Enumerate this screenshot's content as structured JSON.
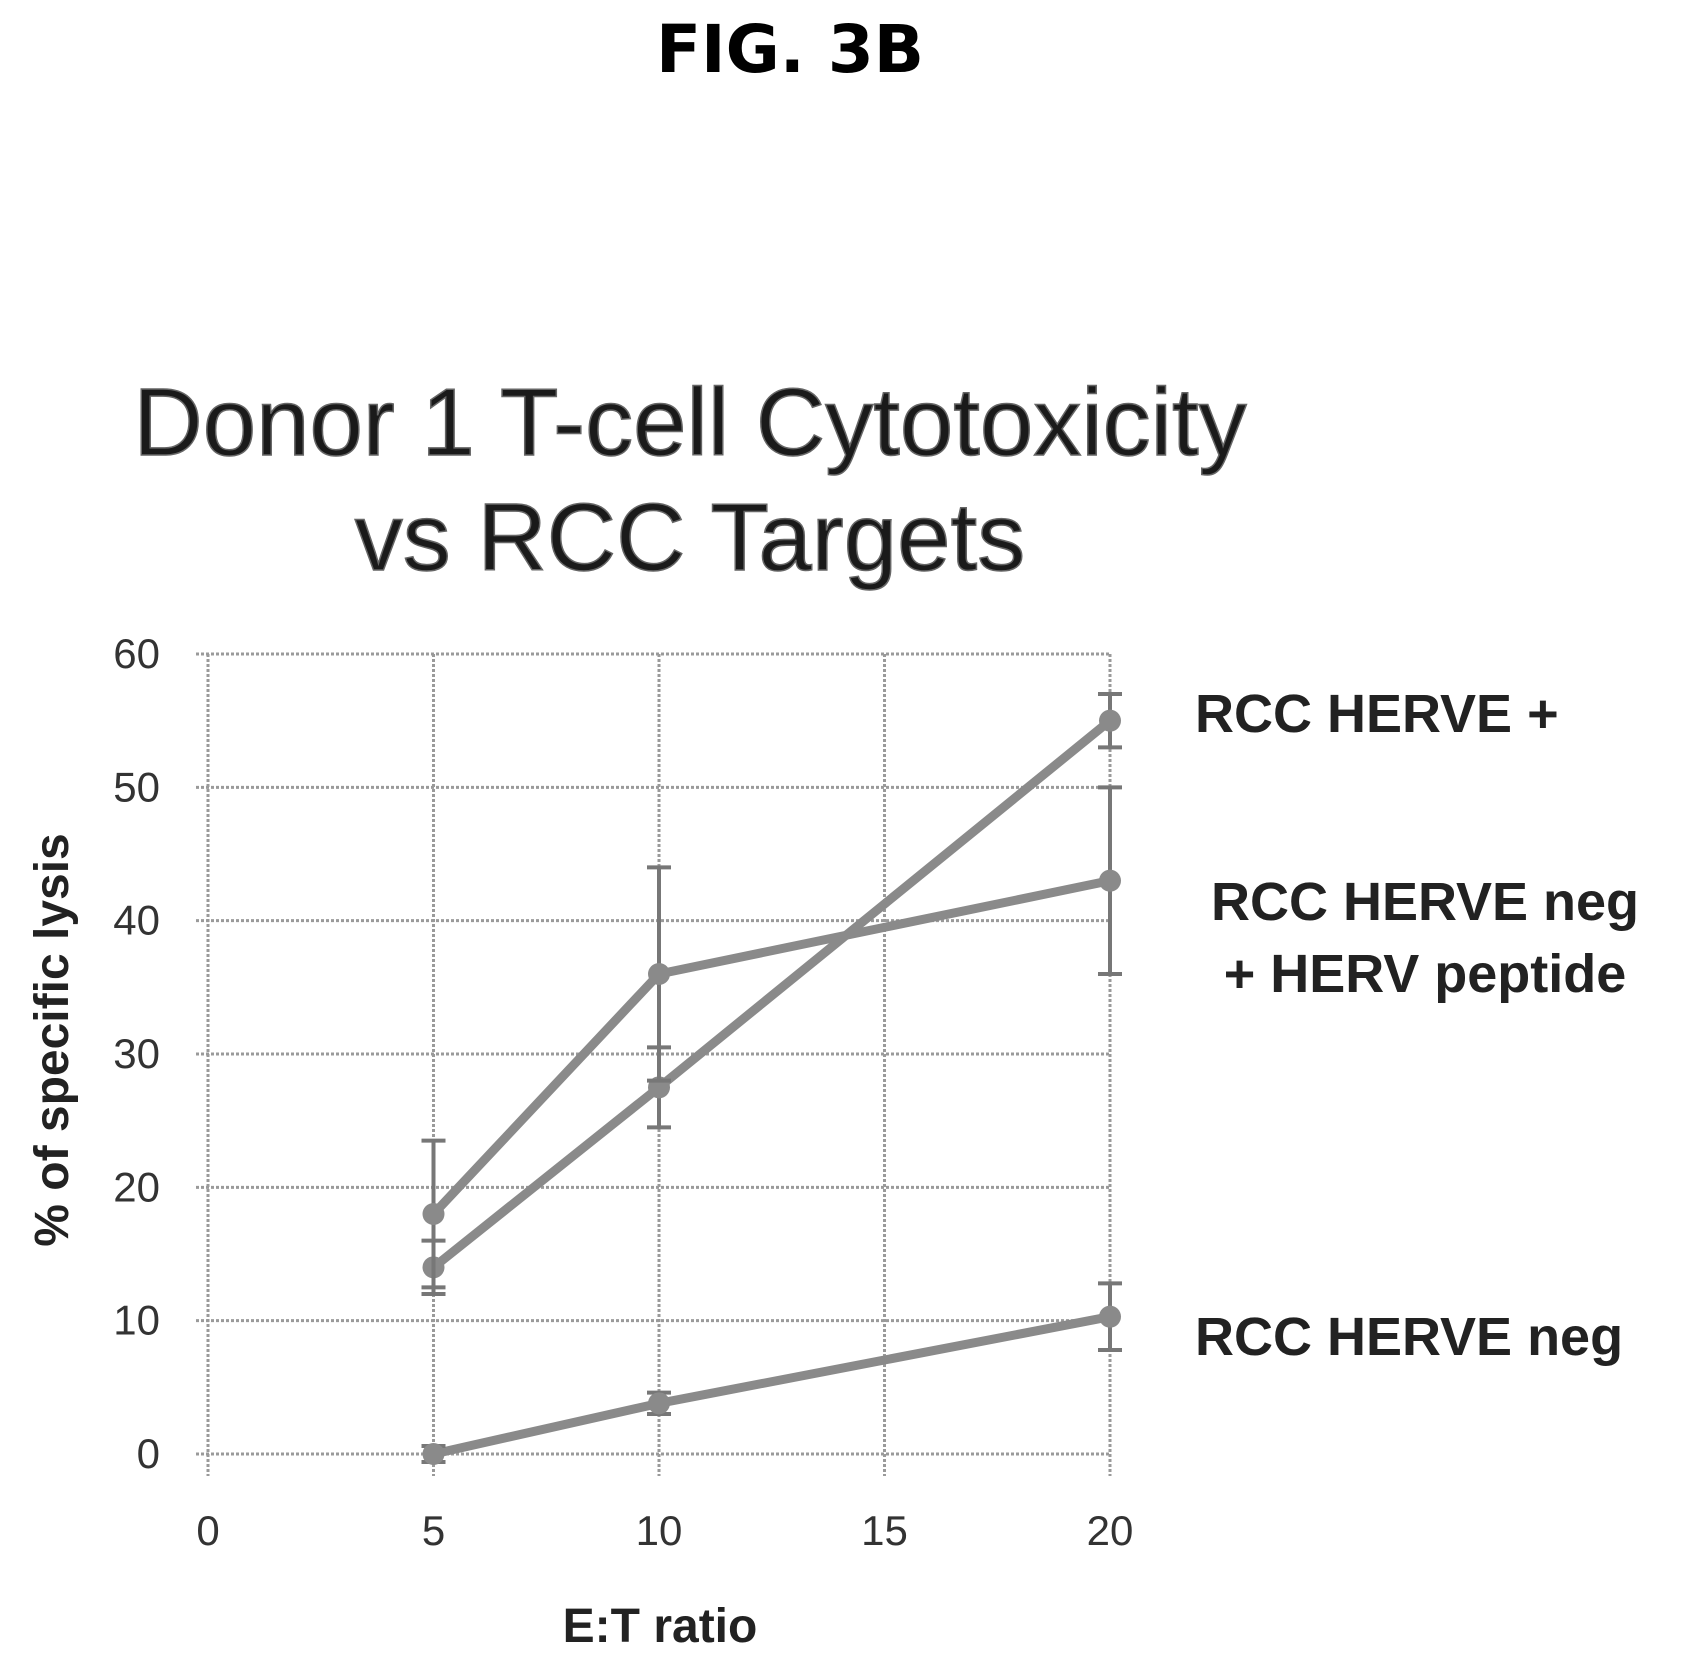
{
  "figure_label": "FIG. 3B",
  "chart_data": {
    "type": "line",
    "title_lines": [
      "Donor 1 T-cell Cytotoxicity",
      "vs RCC Targets"
    ],
    "xlabel": "E:T ratio",
    "ylabel": "% of specific lysis",
    "xlim": [
      0,
      20
    ],
    "ylim": [
      0,
      60
    ],
    "xticks": [
      "0",
      "5",
      "10",
      "15",
      "20"
    ],
    "yticks": [
      "0",
      "10",
      "20",
      "30",
      "40",
      "50",
      "60"
    ],
    "grid": true,
    "legend_placement": "right, labels beside line ends",
    "series": [
      {
        "name": "RCC HERVE +",
        "label_lines": [
          "RCC HERVE +"
        ],
        "x": [
          5,
          10,
          20
        ],
        "y": [
          14,
          27.5,
          55
        ],
        "err": [
          2,
          3,
          2
        ]
      },
      {
        "name": "RCC HERVE neg + HERV peptide",
        "label_lines": [
          "RCC HERVE neg",
          "+ HERV peptide"
        ],
        "x": [
          5,
          10,
          20
        ],
        "y": [
          18,
          36,
          43
        ],
        "err": [
          5.5,
          8,
          7
        ]
      },
      {
        "name": "RCC HERVE neg",
        "label_lines": [
          "RCC HERVE neg"
        ],
        "x": [
          5,
          10,
          20
        ],
        "y": [
          0,
          3.8,
          10.3
        ],
        "err": [
          0.6,
          0.8,
          2.5
        ]
      }
    ]
  }
}
